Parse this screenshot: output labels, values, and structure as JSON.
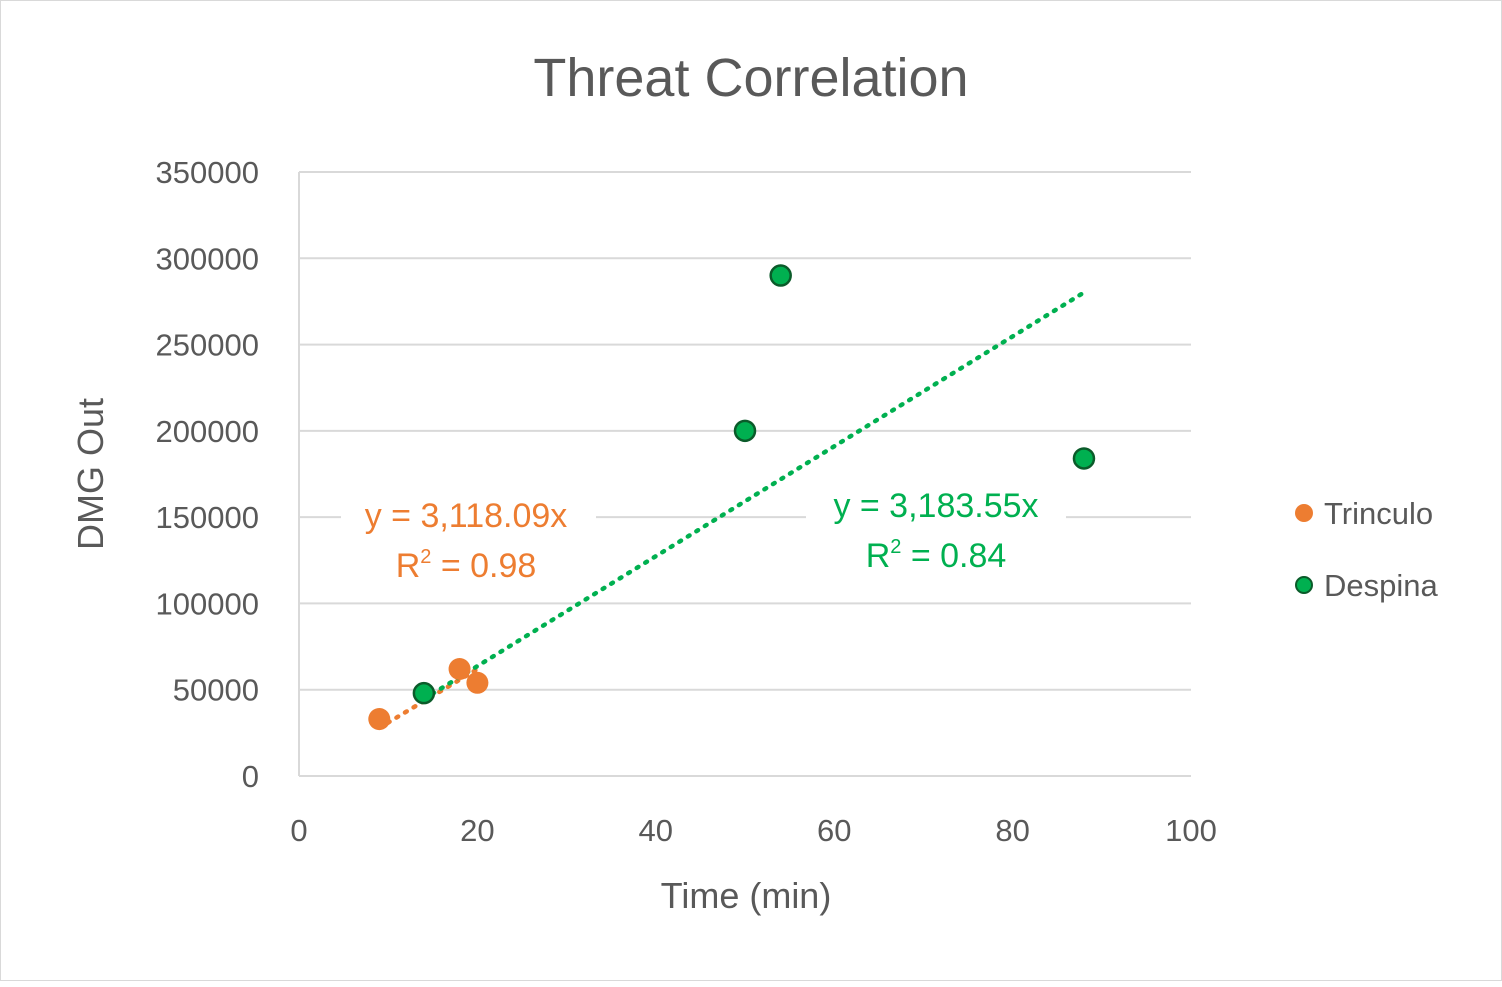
{
  "chart_data": {
    "type": "scatter",
    "title": "Threat Correlation",
    "xlabel": "Time (min)",
    "ylabel": "DMG Out",
    "xlim": [
      0,
      100
    ],
    "ylim": [
      0,
      350000
    ],
    "x_ticks": [
      "0",
      "20",
      "40",
      "60",
      "80",
      "100"
    ],
    "y_ticks": [
      "0",
      "50000",
      "100000",
      "150000",
      "200000",
      "250000",
      "300000",
      "350000"
    ],
    "grid": "horizontal",
    "legend_position": "right",
    "series": [
      {
        "name": "Trinculo",
        "color": "#ed7d31",
        "points": [
          [
            9,
            33000
          ],
          [
            18,
            62000
          ],
          [
            20,
            54000
          ]
        ],
        "trendline": {
          "type": "linear-through-origin",
          "x_range": [
            9,
            20
          ],
          "equation": "y = 3,118.09x",
          "r2_label": "R",
          "r2_sup": "2",
          "r2_value": " = 0.98"
        }
      },
      {
        "name": "Despina",
        "color": "#00b050",
        "points": [
          [
            14,
            48000
          ],
          [
            50,
            200000
          ],
          [
            54,
            290000
          ],
          [
            88,
            184000
          ]
        ],
        "trendline": {
          "type": "linear-through-origin",
          "x_range": [
            14,
            88
          ],
          "equation": "y = 3,183.55x",
          "r2_label": "R",
          "r2_sup": "2",
          "r2_value": " = 0.84"
        }
      }
    ]
  }
}
